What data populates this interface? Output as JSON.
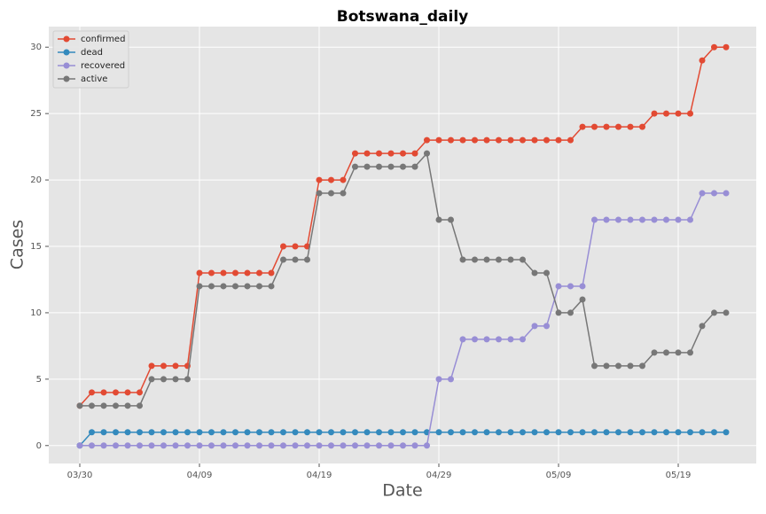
{
  "chart_data": {
    "type": "line",
    "title": "Botswana_daily",
    "x_label": "Date",
    "y_label": "Cases",
    "categories": [
      "03/30",
      null,
      null,
      null,
      null,
      null,
      null,
      null,
      null,
      null,
      "04/09",
      null,
      null,
      null,
      null,
      null,
      null,
      null,
      null,
      null,
      "04/19",
      null,
      null,
      null,
      null,
      null,
      null,
      null,
      null,
      null,
      "04/29",
      null,
      null,
      null,
      null,
      null,
      null,
      null,
      null,
      null,
      "05/09",
      null,
      null,
      null,
      null,
      null,
      null,
      null,
      null,
      null,
      "05/19",
      null,
      null,
      null,
      null
    ],
    "series": [
      {
        "name": "confirmed",
        "color": "#E24A33",
        "values": [
          3,
          4,
          4,
          4,
          4,
          4,
          6,
          6,
          6,
          6,
          13,
          13,
          13,
          13,
          13,
          13,
          13,
          15,
          15,
          15,
          20,
          20,
          20,
          22,
          22,
          22,
          22,
          22,
          22,
          23,
          23,
          23,
          23,
          23,
          23,
          23,
          23,
          23,
          23,
          23,
          23,
          23,
          24,
          24,
          24,
          24,
          24,
          24,
          25,
          25,
          25,
          25,
          29,
          30,
          30
        ]
      },
      {
        "name": "dead",
        "color": "#348ABD",
        "values": [
          0,
          1,
          1,
          1,
          1,
          1,
          1,
          1,
          1,
          1,
          1,
          1,
          1,
          1,
          1,
          1,
          1,
          1,
          1,
          1,
          1,
          1,
          1,
          1,
          1,
          1,
          1,
          1,
          1,
          1,
          1,
          1,
          1,
          1,
          1,
          1,
          1,
          1,
          1,
          1,
          1,
          1,
          1,
          1,
          1,
          1,
          1,
          1,
          1,
          1,
          1,
          1,
          1,
          1,
          1
        ]
      },
      {
        "name": "recovered",
        "color": "#988ED5",
        "values": [
          0,
          0,
          0,
          0,
          0,
          0,
          0,
          0,
          0,
          0,
          0,
          0,
          0,
          0,
          0,
          0,
          0,
          0,
          0,
          0,
          0,
          0,
          0,
          0,
          0,
          0,
          0,
          0,
          0,
          0,
          5,
          5,
          8,
          8,
          8,
          8,
          8,
          8,
          9,
          9,
          12,
          12,
          12,
          17,
          17,
          17,
          17,
          17,
          17,
          17,
          17,
          17,
          19,
          19,
          19
        ]
      },
      {
        "name": "active",
        "color": "#777777",
        "values": [
          3,
          3,
          3,
          3,
          3,
          3,
          5,
          5,
          5,
          5,
          12,
          12,
          12,
          12,
          12,
          12,
          12,
          14,
          14,
          14,
          19,
          19,
          19,
          21,
          21,
          21,
          21,
          21,
          21,
          22,
          17,
          17,
          14,
          14,
          14,
          14,
          14,
          14,
          13,
          13,
          10,
          10,
          11,
          6,
          6,
          6,
          6,
          6,
          7,
          7,
          7,
          7,
          9,
          10,
          10
        ]
      }
    ],
    "ylim": [
      -1.35,
      31.55
    ],
    "yticks": [
      0,
      5,
      10,
      15,
      20,
      25,
      30
    ],
    "grid": true,
    "legend": "upper left"
  }
}
